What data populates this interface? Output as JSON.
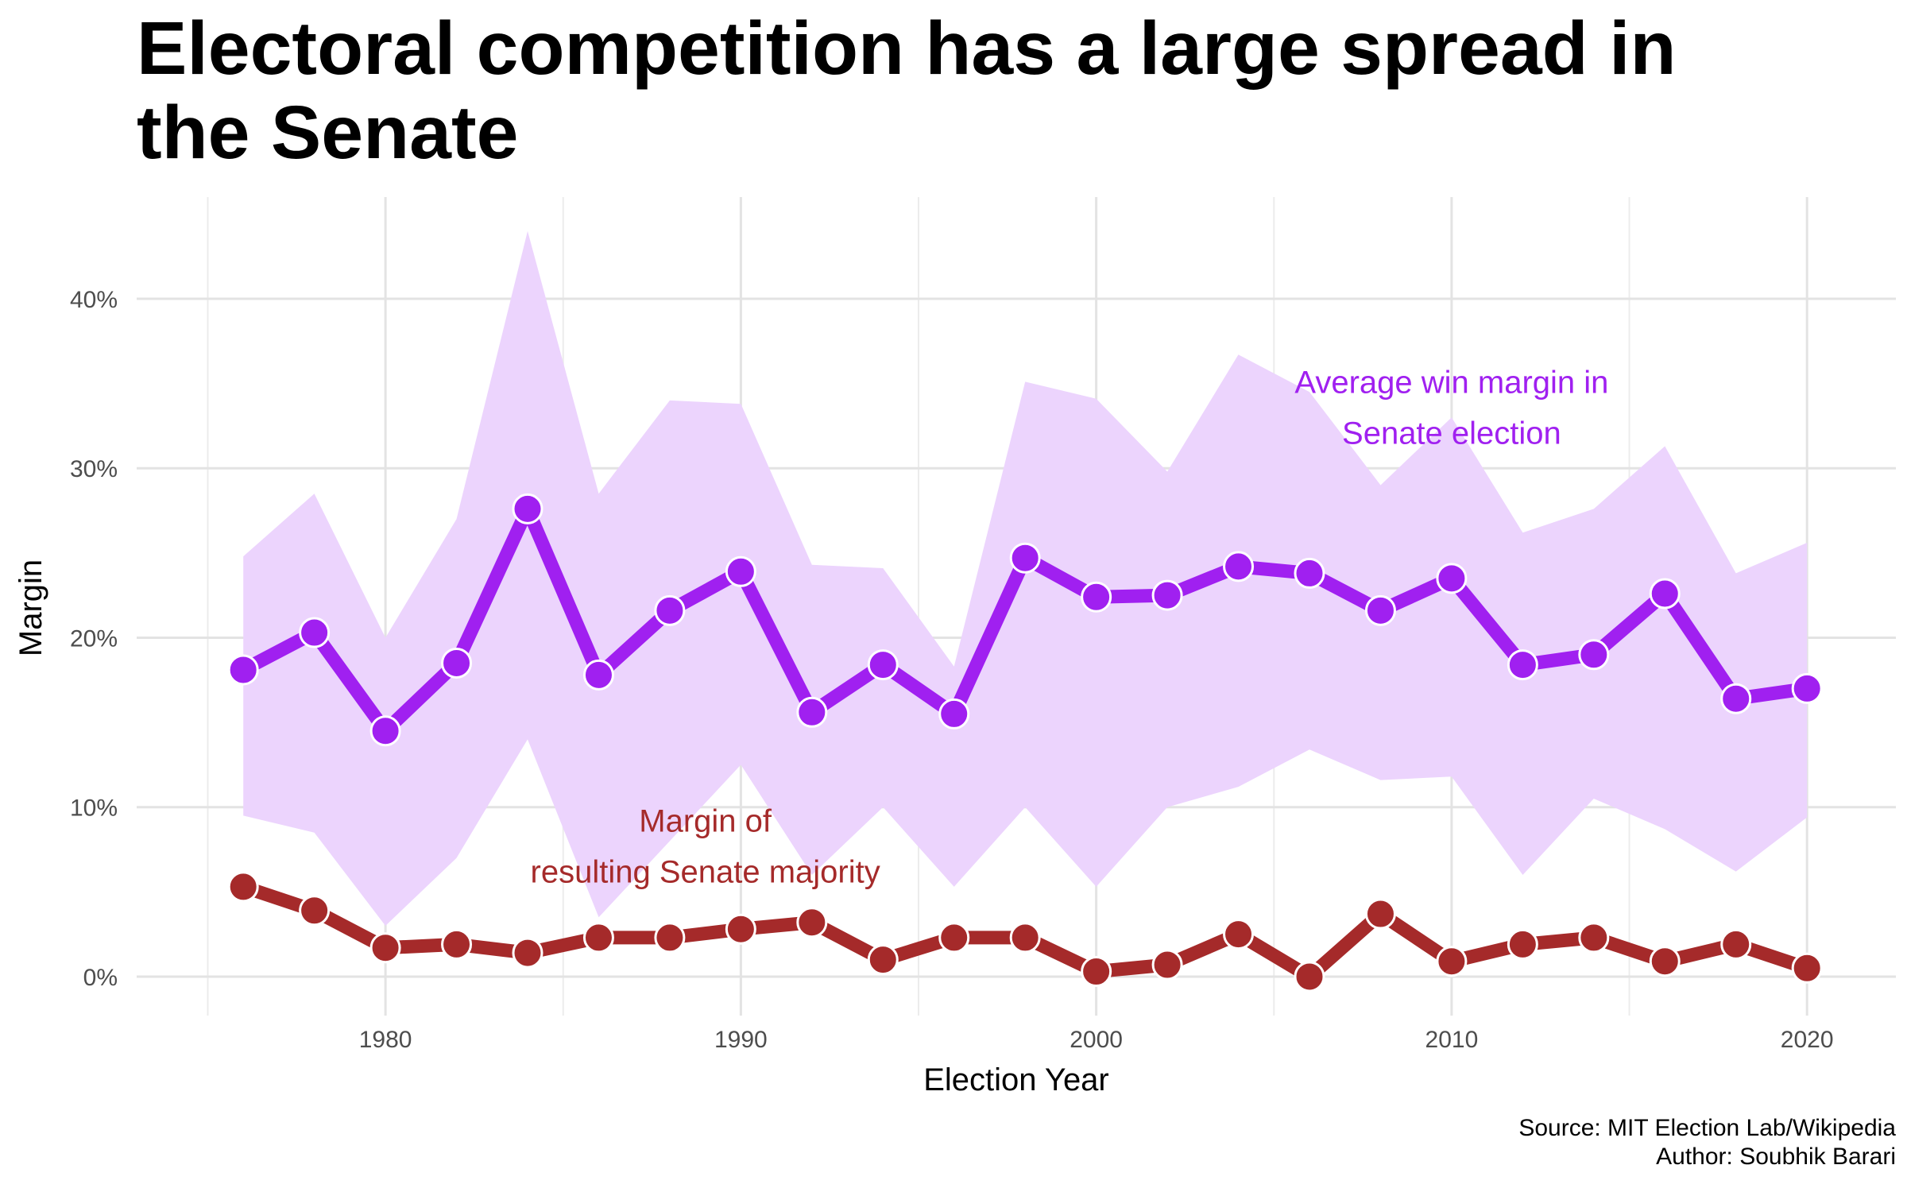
{
  "chart_data": {
    "type": "line",
    "title": "Electoral competition has a large spread in the Senate",
    "xlabel": "Election Year",
    "ylabel": "Margin",
    "xlim": [
      1973,
      2022.5
    ],
    "ylim": [
      -2.3,
      46
    ],
    "x_ticks": [
      1980,
      1990,
      2000,
      2010,
      2020
    ],
    "y_ticks": [
      0,
      10,
      20,
      30,
      40
    ],
    "y_tick_labels": [
      "0%",
      "10%",
      "20%",
      "30%",
      "40%"
    ],
    "grid": true,
    "x": [
      1976,
      1978,
      1980,
      1982,
      1984,
      1986,
      1988,
      1990,
      1992,
      1994,
      1996,
      1998,
      2000,
      2002,
      2004,
      2006,
      2008,
      2010,
      2012,
      2014,
      2016,
      2018,
      2020
    ],
    "series": [
      {
        "values": [
          18.1,
          20.3,
          14.5,
          18.5,
          27.6,
          17.8,
          21.6,
          23.9,
          15.6,
          18.4,
          15.5,
          24.7,
          22.4,
          22.5,
          24.2,
          23.8,
          21.6,
          23.5,
          18.4,
          19.0,
          22.6,
          16.4,
          17.0
        ],
        "lower": [
          9.5,
          8.5,
          3.0,
          7.0,
          14.0,
          3.5,
          8.0,
          12.5,
          6.0,
          10.0,
          5.3,
          10.0,
          5.3,
          10.0,
          11.2,
          13.4,
          11.6,
          11.8,
          6.0,
          10.5,
          8.7,
          6.2,
          9.4
        ],
        "upper": [
          24.8,
          28.5,
          20.0,
          27.0,
          44.0,
          28.5,
          34.0,
          33.8,
          24.3,
          24.1,
          18.3,
          35.1,
          34.1,
          29.8,
          36.7,
          34.5,
          29.0,
          33.0,
          26.2,
          27.6,
          31.3,
          23.8,
          25.6
        ],
        "color": "#a020f0",
        "band_color": "#ecd4fd"
      },
      {
        "values": [
          5.3,
          3.9,
          1.7,
          1.9,
          1.4,
          2.3,
          2.3,
          2.8,
          3.2,
          1.0,
          2.3,
          2.3,
          0.3,
          0.7,
          2.5,
          0.0,
          3.7,
          0.9,
          1.9,
          2.3,
          0.9,
          1.9,
          0.5
        ],
        "color": "#a52a2a"
      }
    ],
    "annotations": [
      {
        "lines": [
          "Average win margin in",
          "Senate election"
        ],
        "x": 2010,
        "y": 33.6,
        "color": "#a020f0"
      },
      {
        "lines": [
          "Margin of",
          "resulting Senate majority"
        ],
        "x": 1989,
        "y": 7.7,
        "color": "#a52a2a"
      }
    ],
    "caption": [
      "Source: MIT Election Lab/Wikipedia",
      "Author: Soubhik Barari"
    ]
  }
}
